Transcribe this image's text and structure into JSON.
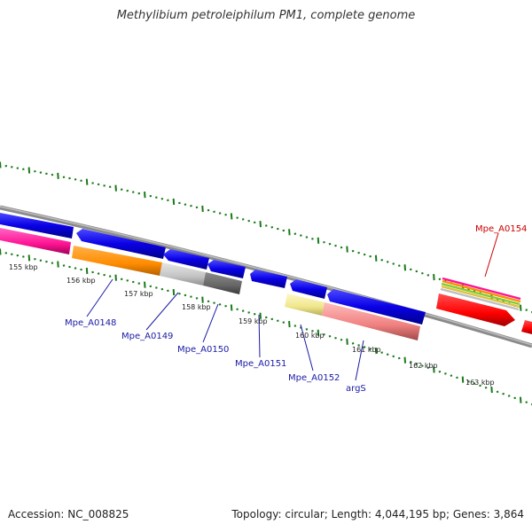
{
  "title": "Methylibium petroleiphilum PM1, complete genome",
  "footer": {
    "accession": "Accession: NC_008825",
    "topology": "Topology: circular; Length: 4,044,195 bp; Genes: 3,864"
  },
  "ticks": [
    "155 kbp",
    "156 kbp",
    "157 kbp",
    "158 kbp",
    "159 kbp",
    "160 kbp",
    "161 kbp",
    "162 kbp",
    "163 kbp"
  ],
  "genes": {
    "mpe0148": "Mpe_A0148",
    "mpe0149": "Mpe_A0149",
    "mpe0150": "Mpe_A0150",
    "mpe0151": "Mpe_A0151",
    "mpe0152": "Mpe_A0152",
    "args": "argS",
    "mpe0154": "Mpe_A0154"
  },
  "colors": {
    "strand_blue": "#0a00e6",
    "tick_green": "#1a7a1a",
    "backbone_gray": "#8a8a8a",
    "label_blue": "#1a1aa6",
    "label_red": "#cc0000"
  }
}
